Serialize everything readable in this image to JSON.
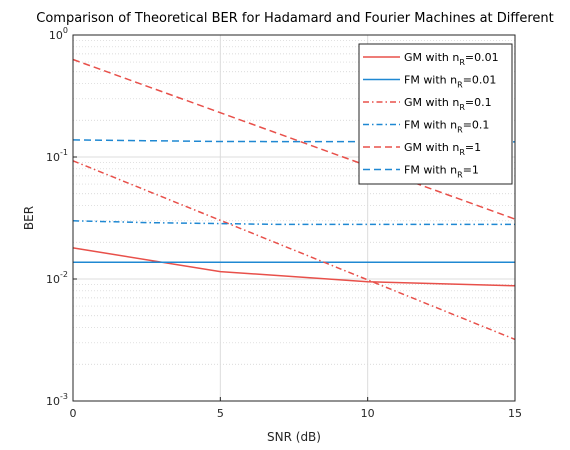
{
  "chart_data": {
    "type": "line",
    "title": "Comparison of Theoretical BER for Hadamard and Fourier Machines at Different",
    "xlabel": "SNR (dB)",
    "ylabel": "BER",
    "xlim": [
      0,
      15
    ],
    "ylim": [
      0.001,
      1
    ],
    "yscale": "log",
    "grid": true,
    "minor_grid": true,
    "legend_location": "top-right",
    "x_ticks": [
      "0",
      "5",
      "10",
      "15"
    ],
    "y_ticks": [
      {
        "base": "10",
        "exp": "-3"
      },
      {
        "base": "10",
        "exp": "-2"
      },
      {
        "base": "10",
        "exp": "-1"
      },
      {
        "base": "10",
        "exp": "0"
      }
    ],
    "series": [
      {
        "name": "GM with n_R=0.01",
        "label_main": "GM with n",
        "label_sub": "R",
        "label_tail": "=0.01",
        "color": "#e8504a",
        "dash": "solid",
        "x": [
          0,
          5,
          10,
          15
        ],
        "y": [
          0.018,
          0.0115,
          0.0095,
          0.0088
        ]
      },
      {
        "name": "FM with n_R=0.01",
        "label_main": "FM with n",
        "label_sub": "R",
        "label_tail": "=0.01",
        "color": "#1f88d2",
        "dash": "solid",
        "x": [
          0,
          15
        ],
        "y": [
          0.0137,
          0.0137
        ]
      },
      {
        "name": "GM with n_R=0.1",
        "label_main": "GM with n",
        "label_sub": "R",
        "label_tail": "=0.1",
        "color": "#e8504a",
        "dash": "dashdot",
        "x": [
          0,
          15
        ],
        "y": [
          0.093,
          0.0032
        ]
      },
      {
        "name": "FM with n_R=0.1",
        "label_main": "FM with n",
        "label_sub": "R",
        "label_tail": "=0.1",
        "color": "#1f88d2",
        "dash": "dashdot",
        "x": [
          0,
          2.5,
          7,
          15
        ],
        "y": [
          0.03,
          0.029,
          0.028,
          0.028
        ]
      },
      {
        "name": "GM with n_R=1",
        "label_main": "GM with n",
        "label_sub": "R",
        "label_tail": "=1",
        "color": "#e8504a",
        "dash": "dashed",
        "x": [
          0,
          15
        ],
        "y": [
          0.63,
          0.031
        ]
      },
      {
        "name": "FM with n_R=1",
        "label_main": "FM with n",
        "label_sub": "R",
        "label_tail": "=1",
        "color": "#1f88d2",
        "dash": "dashed",
        "x": [
          0,
          5,
          15
        ],
        "y": [
          0.138,
          0.134,
          0.133
        ]
      }
    ]
  }
}
